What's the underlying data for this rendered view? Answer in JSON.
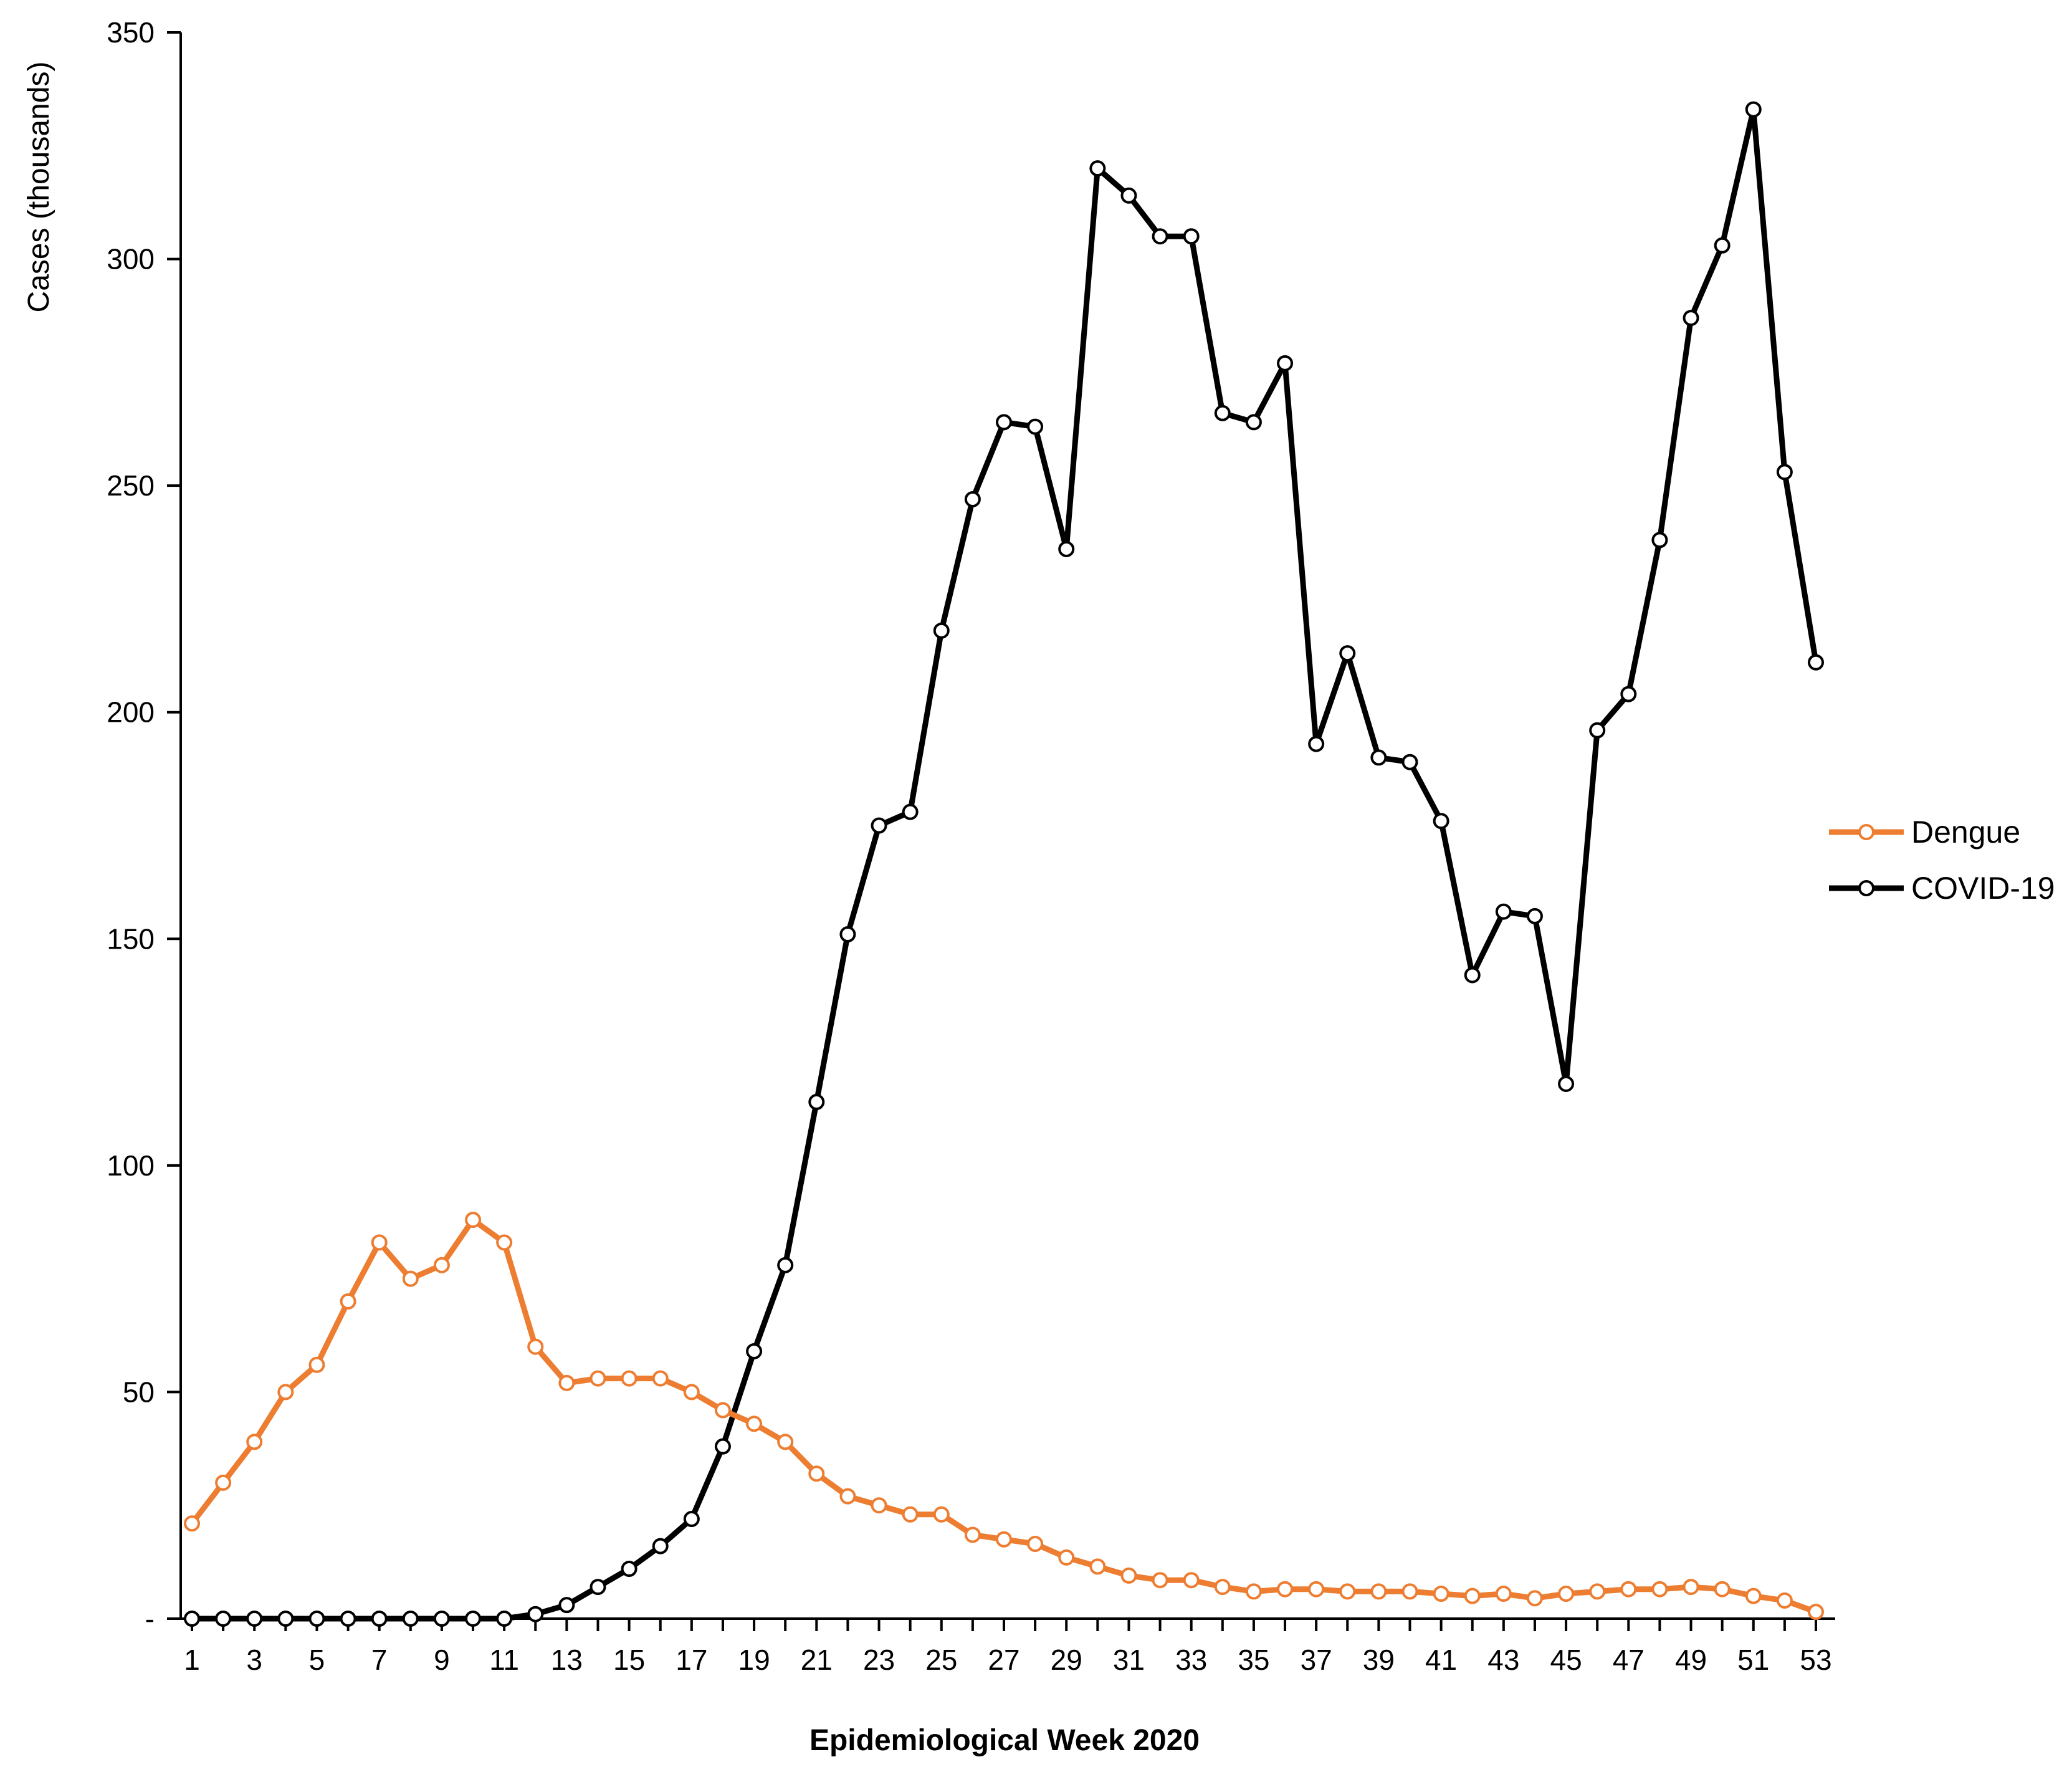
{
  "chart_data": {
    "type": "line",
    "title": "",
    "xlabel": "Epidemiological Week 2020",
    "ylabel": "Cases (thousands)",
    "xlim": [
      1,
      53
    ],
    "ylim": [
      0,
      350
    ],
    "y_ticks": [
      0,
      50,
      100,
      150,
      200,
      250,
      300,
      350
    ],
    "y_tick_labels": [
      "-",
      "50",
      "100",
      "150",
      "200",
      "250",
      "300",
      "350"
    ],
    "x_ticks": [
      1,
      3,
      5,
      7,
      9,
      11,
      13,
      15,
      17,
      19,
      21,
      23,
      25,
      27,
      29,
      31,
      33,
      35,
      37,
      39,
      41,
      43,
      45,
      47,
      49,
      51,
      53
    ],
    "x_tick_labels": [
      "1",
      "3",
      "5",
      "7",
      "9",
      "11",
      "13",
      "15",
      "17",
      "19",
      "21",
      "23",
      "25",
      "27",
      "29",
      "31",
      "33",
      "35",
      "37",
      "39",
      "41",
      "43",
      "45",
      "47",
      "49",
      "51",
      "53"
    ],
    "grid": false,
    "legend_position": "right",
    "x": [
      1,
      2,
      3,
      4,
      5,
      6,
      7,
      8,
      9,
      10,
      11,
      12,
      13,
      14,
      15,
      16,
      17,
      18,
      19,
      20,
      21,
      22,
      23,
      24,
      25,
      26,
      27,
      28,
      29,
      30,
      31,
      32,
      33,
      34,
      35,
      36,
      37,
      38,
      39,
      40,
      41,
      42,
      43,
      44,
      45,
      46,
      47,
      48,
      49,
      50,
      51,
      52,
      53
    ],
    "series": [
      {
        "name": "Dengue",
        "color": "#ED7D31",
        "values": [
          21,
          30,
          39,
          50,
          56,
          70,
          83,
          75,
          78,
          88,
          83,
          60,
          52,
          53,
          53,
          53,
          50,
          46,
          43,
          39,
          32,
          27,
          25,
          23,
          23,
          18.5,
          17.5,
          16.5,
          13.5,
          11.5,
          9.5,
          8.5,
          8.5,
          7,
          6,
          6.5,
          6.5,
          6,
          6,
          6,
          5.5,
          5,
          5.5,
          4.5,
          5.5,
          6,
          6.5,
          6.5,
          7,
          6.5,
          5,
          4,
          1.5
        ]
      },
      {
        "name": "COVID-19",
        "color": "#000000",
        "values": [
          0,
          0,
          0,
          0,
          0,
          0,
          0,
          0,
          0,
          0,
          0,
          1,
          3,
          7,
          11,
          16,
          22,
          38,
          59,
          78,
          114,
          151,
          175,
          178,
          218,
          247,
          264,
          263,
          236,
          320,
          314,
          305,
          305,
          266,
          264,
          277,
          193,
          213,
          190,
          189,
          176,
          142,
          156,
          155,
          118,
          196,
          204,
          238,
          287,
          303,
          333,
          253,
          211
        ]
      }
    ]
  }
}
